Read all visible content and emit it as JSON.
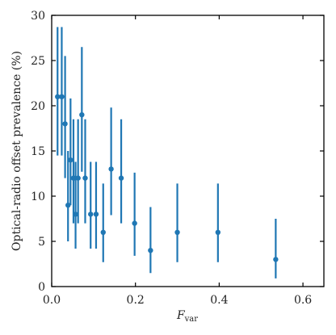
{
  "chart_data": {
    "type": "scatter",
    "title": "",
    "xlabel": "F",
    "xlabel_sub": "var",
    "ylabel": "Optical-radio offset prevalence (%)",
    "xlim": [
      0,
      0.65
    ],
    "ylim": [
      0,
      30
    ],
    "xticks": [
      0,
      0.2,
      0.4,
      0.6
    ],
    "xtick_labels": [
      "0.0",
      "0.2",
      "0.4",
      "0.6"
    ],
    "yticks": [
      0,
      5,
      10,
      15,
      20,
      25,
      30
    ],
    "ytick_labels": [
      "0",
      "5",
      "10",
      "15",
      "20",
      "25",
      "30"
    ],
    "grid": false,
    "color": "#1f77b4",
    "series": [
      {
        "x": [
          0.014,
          0.024,
          0.032,
          0.039,
          0.045,
          0.052,
          0.057,
          0.063,
          0.072,
          0.08,
          0.093,
          0.106,
          0.123,
          0.142,
          0.166,
          0.198,
          0.236,
          0.3,
          0.397,
          0.535
        ],
        "y": [
          21,
          21,
          18,
          9,
          14,
          12,
          8,
          12,
          19,
          12,
          8,
          8,
          6,
          13,
          12,
          7,
          4,
          6,
          6,
          3
        ],
        "ylow": [
          14.5,
          14.5,
          12,
          5,
          9,
          7,
          4.2,
          7,
          12.7,
          7,
          4.2,
          4.2,
          2.7,
          7.9,
          7,
          3.4,
          1.5,
          2.7,
          2.7,
          0.9
        ],
        "yhigh": [
          28.7,
          28.7,
          25.5,
          15,
          20.8,
          18.5,
          13.8,
          18.5,
          26.5,
          18.5,
          13.8,
          13.8,
          11.4,
          19.8,
          18.5,
          12.6,
          8.8,
          11.4,
          11.4,
          7.5
        ]
      }
    ]
  }
}
